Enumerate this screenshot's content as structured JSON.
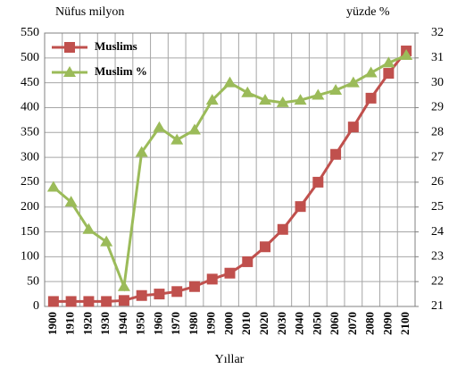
{
  "chart_data": {
    "type": "line",
    "y_label": "Nüfus milyon",
    "y2_label": "yüzde %",
    "x_label": "Yıllar",
    "categories": [
      "1900",
      "1910",
      "1920",
      "1930",
      "1940",
      "1950",
      "1960",
      "1970",
      "1980",
      "1990",
      "2000",
      "2010",
      "2020",
      "2030",
      "2040",
      "2050",
      "2060",
      "2070",
      "2080",
      "2090",
      "2100"
    ],
    "series": [
      {
        "name": "Muslims",
        "color": "#c0504d",
        "marker": "square",
        "values": [
          10,
          10,
          10,
          10,
          12,
          22,
          25,
          30,
          40,
          55,
          67,
          90,
          120,
          155,
          201,
          250,
          306,
          361,
          419,
          469,
          514
        ]
      },
      {
        "name": "Muslim %",
        "color": "#9bbb59",
        "marker": "triangle",
        "axis": "y2",
        "values": [
          25.8,
          25.2,
          24.1,
          23.6,
          21.8,
          27.2,
          28.2,
          27.7,
          28.1,
          29.3,
          30.0,
          29.6,
          29.3,
          29.2,
          29.3,
          29.5,
          29.7,
          30.0,
          30.4,
          30.8,
          31.1
        ]
      }
    ],
    "ylim": [
      0,
      550
    ],
    "yticks": [
      0,
      50,
      100,
      150,
      200,
      250,
      300,
      350,
      400,
      450,
      500,
      550
    ],
    "y2lim": [
      21,
      32
    ],
    "y2ticks": [
      21,
      22,
      23,
      24,
      25,
      26,
      27,
      28,
      29,
      30,
      31,
      32
    ],
    "grid": true,
    "legend": "upper left"
  }
}
